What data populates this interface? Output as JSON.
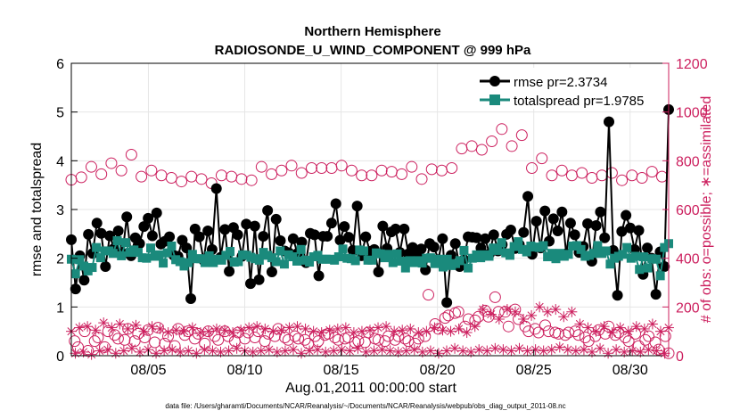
{
  "chart_data": {
    "type": "line",
    "title": "Northern Hemisphere",
    "subtitle": "RADIOSONDE_U_WIND_COMPONENT @ 999 hPa",
    "xlabel": "Aug.01,2011 00:00:00 start",
    "ylabel": "rmse and totalspread",
    "y2label": "# of obs: o=possible; ∗=assimilated",
    "footnote": "data file: /Users/gharamti/Documents/NCAR/Reanalysis/~/Documents/NCAR/Reanalysis/webpub/obs_diag_output_2011-08.nc",
    "x_tick_labels": [
      "08/05",
      "08/10",
      "08/15",
      "08/20",
      "08/25",
      "08/30"
    ],
    "x_tick_values": [
      5,
      10,
      15,
      20,
      25,
      30
    ],
    "xlim": [
      1,
      32
    ],
    "ylim": [
      0,
      6
    ],
    "y_ticks": [
      0,
      1,
      2,
      3,
      4,
      5,
      6
    ],
    "y2lim": [
      0,
      1200
    ],
    "y2_ticks": [
      0,
      200,
      400,
      600,
      800,
      1000,
      1200
    ],
    "colors": {
      "rmse": "#000000",
      "spread": "#1a8a7c",
      "obs": "#cc1f5e",
      "axis": "#000000"
    },
    "legend": [
      {
        "label": "rmse pr=2.3734",
        "series": "rmse"
      },
      {
        "label": "totalspread pr=1.9785",
        "series": "spread"
      }
    ],
    "series": [
      {
        "name": "rmse",
        "axis": "left",
        "marker": "filled-circle",
        "values": [
          2.38,
          1.37,
          2.05,
          1.55,
          2.49,
          2.1,
          2.72,
          2.51,
          1.83,
          2.46,
          2.2,
          2.56,
          2.1,
          2.85,
          2.05,
          2.42,
          2.3,
          2.65,
          2.82,
          2.46,
          2.93,
          2.29,
          2.35,
          2.44,
          2.06,
          2.04,
          2.37,
          2.21,
          1.17,
          2.6,
          2.44,
          1.96,
          2.56,
          2.18,
          3.43,
          2.02,
          2.59,
          1.73,
          2.63,
          2.48,
          2.04,
          2.7,
          1.48,
          2.66,
          1.56,
          2.45,
          2.98,
          1.72,
          2.8,
          2.36,
          2.15,
          2.11,
          2.4,
          2.1,
          2.33,
          1.91,
          2.51,
          2.48,
          1.64,
          2.45,
          2.45,
          2.72,
          3.12,
          2.37,
          2.65,
          2.43,
          2.16,
          3.07,
          2.05,
          2.44,
          2.14,
          2.18,
          1.72,
          2.66,
          2.2,
          2.54,
          2.6,
          2.12,
          2.6,
          2.09,
          2.22,
          2.06,
          2.19,
          1.76,
          2.3,
          2.23,
          1.97,
          2.4,
          1.09,
          2.06,
          2.3,
          1.83,
          1.97,
          2.44,
          2.43,
          2.42,
          2.21,
          2.4,
          2.09,
          2.48,
          2.15,
          2.28,
          2.49,
          2.58,
          2.2,
          2.28,
          2.53,
          3.27,
          2.08,
          2.76,
          2.21,
          2.97,
          2.35,
          2.81,
          2.56,
          2.95,
          2.09,
          2.72,
          2.48,
          2.12,
          2.24,
          2.71,
          1.94,
          2.67,
          2.95,
          2.42,
          4.8,
          2.16,
          1.24,
          2.55,
          2.88,
          2.62,
          2.18,
          2.57,
          1.67,
          2.21,
          2.0,
          1.26,
          2.13,
          1.83,
          5.05
        ]
      },
      {
        "name": "totalspread",
        "axis": "left",
        "marker": "filled-square",
        "values": [
          1.98,
          1.68,
          1.97,
          1.84,
          1.74,
          1.81,
          2.22,
          2.01,
          2.15,
          2.15,
          2.1,
          2.36,
          2.05,
          2.32,
          2.12,
          2.17,
          2.12,
          2.01,
          2.0,
          2.21,
          2.04,
          2.07,
          1.9,
          2.11,
          2.25,
          1.97,
          1.93,
          1.84,
          1.91,
          2.08,
          1.99,
          1.99,
          1.91,
          2.05,
          1.91,
          1.98,
          1.96,
          2.06,
          2.14,
          1.92,
          1.93,
          2.07,
          2.06,
          2.02,
          1.99,
          1.96,
          2.12,
          2.06,
          2.01,
          1.93,
          2.15,
          1.88,
          2.07,
          2.03,
          1.94,
          2.18,
          1.96,
          1.92,
          2.03,
          2.06,
          1.98,
          1.98,
          1.98,
          1.96,
          2.03,
          2.19,
          2.0,
          1.99,
          1.95,
          2.17,
          2.15,
          1.96,
          1.96,
          2.11,
          2.09,
          2.01,
          2.08,
          1.91,
          2.09,
          1.94,
          1.8,
          1.95,
          1.91,
          1.95,
          1.9,
          2.0,
          2.01,
          1.89,
          1.98,
          1.82,
          1.98,
          1.85,
          1.89,
          1.95,
          2.16,
          1.8,
          2.0,
          2.07,
          2.01,
          2.07,
          2.04,
          2.21,
          2.16,
          2.32,
          2.11,
          2.06,
          2.24,
          2.34,
          2.18,
          2.13,
          2.25,
          2.23,
          2.22,
          2.26,
          2.03,
          2.1,
          1.99,
          2.1,
          2.04,
          2.08,
          2.25,
          2.26,
          2.18,
          2.04,
          2.06,
          2.1,
          2.26,
          2.1,
          2.15,
          1.88,
          2.0,
          2.04,
          2.08,
          2.22,
          2.0,
          2.04,
          1.77,
          2.03,
          1.8,
          1.99,
          1.98,
          1.64,
          2.22,
          2.3
        ]
      },
      {
        "name": "possible",
        "axis": "right",
        "marker": "open-circle",
        "values": [
          722,
          60,
          35,
          732,
          100,
          20,
          775,
          60,
          75,
          745,
          35,
          100,
          790,
          85,
          70,
          760,
          65,
          110,
          825,
          60,
          90,
          735,
          75,
          105,
          760,
          55,
          115,
          740,
          50,
          80,
          730,
          40,
          110,
          715,
          85,
          100,
          735,
          70,
          90,
          725,
          50,
          100,
          708,
          80,
          65,
          740,
          100,
          80,
          735,
          60,
          95,
          725,
          70,
          95,
          720,
          75,
          100,
          775,
          60,
          90,
          745,
          80,
          110,
          760,
          75,
          65,
          780,
          80,
          70,
          750,
          65,
          50,
          770,
          80,
          60,
          770,
          85,
          90,
          770,
          75,
          65,
          780,
          70,
          75,
          760,
          55,
          60,
          740,
          55,
          95,
          740,
          70,
          65,
          760,
          60,
          80,
          755,
          65,
          80,
          745,
          70,
          60,
          775,
          50,
          70,
          725,
          80,
          250,
          765,
          130,
          110,
          760,
          155,
          165,
          770,
          175,
          180,
          850,
          120,
          150,
          860,
          145,
          160,
          845,
          185,
          160,
          880,
          240,
          180,
          930,
          180,
          120,
          860,
          190,
          150,
          905,
          120,
          100,
          770,
          110,
          95,
          810,
          125,
          100,
          740,
          95,
          90,
          760,
          85,
          95,
          740,
          100,
          85,
          750,
          75,
          60,
          730,
          80,
          105,
          740,
          90,
          120,
          750,
          85,
          95,
          720,
          75,
          60,
          740,
          90,
          40,
          730,
          65,
          80,
          755,
          55,
          25,
          735,
          80,
          10
        ]
      },
      {
        "name": "assimilated",
        "axis": "right",
        "marker": "asterisk",
        "values": [
          100,
          10,
          115,
          15,
          120,
          5,
          105,
          20,
          135,
          25,
          115,
          10,
          130,
          20,
          110,
          30,
          125,
          15,
          100,
          25,
          120,
          10,
          110,
          20,
          95,
          25,
          105,
          15,
          100,
          20,
          115,
          10,
          95,
          25,
          100,
          20,
          110,
          15,
          105,
          20,
          95,
          30,
          105,
          20,
          115,
          15,
          120,
          20,
          110,
          25,
          100,
          15,
          105,
          20,
          115,
          25,
          120,
          10,
          110,
          20,
          100,
          25,
          95,
          15,
          105,
          20,
          110,
          25,
          115,
          20,
          95,
          30,
          100,
          15,
          105,
          20,
          115,
          25,
          120,
          20,
          100,
          15,
          105,
          20,
          110,
          25,
          95,
          15,
          100,
          20,
          115,
          10,
          105,
          20,
          100,
          30,
          110,
          20,
          95,
          15,
          120,
          25,
          190,
          20,
          170,
          30,
          150,
          25,
          190,
          20,
          180,
          30,
          150,
          20,
          165,
          25,
          200,
          20,
          180,
          25,
          190,
          35,
          160,
          25,
          180,
          20,
          130,
          25,
          115,
          15,
          100,
          30,
          120,
          10,
          95,
          25,
          115,
          15,
          100,
          20,
          120,
          15,
          110,
          25,
          130,
          20,
          100,
          10,
          115
        ]
      }
    ]
  }
}
